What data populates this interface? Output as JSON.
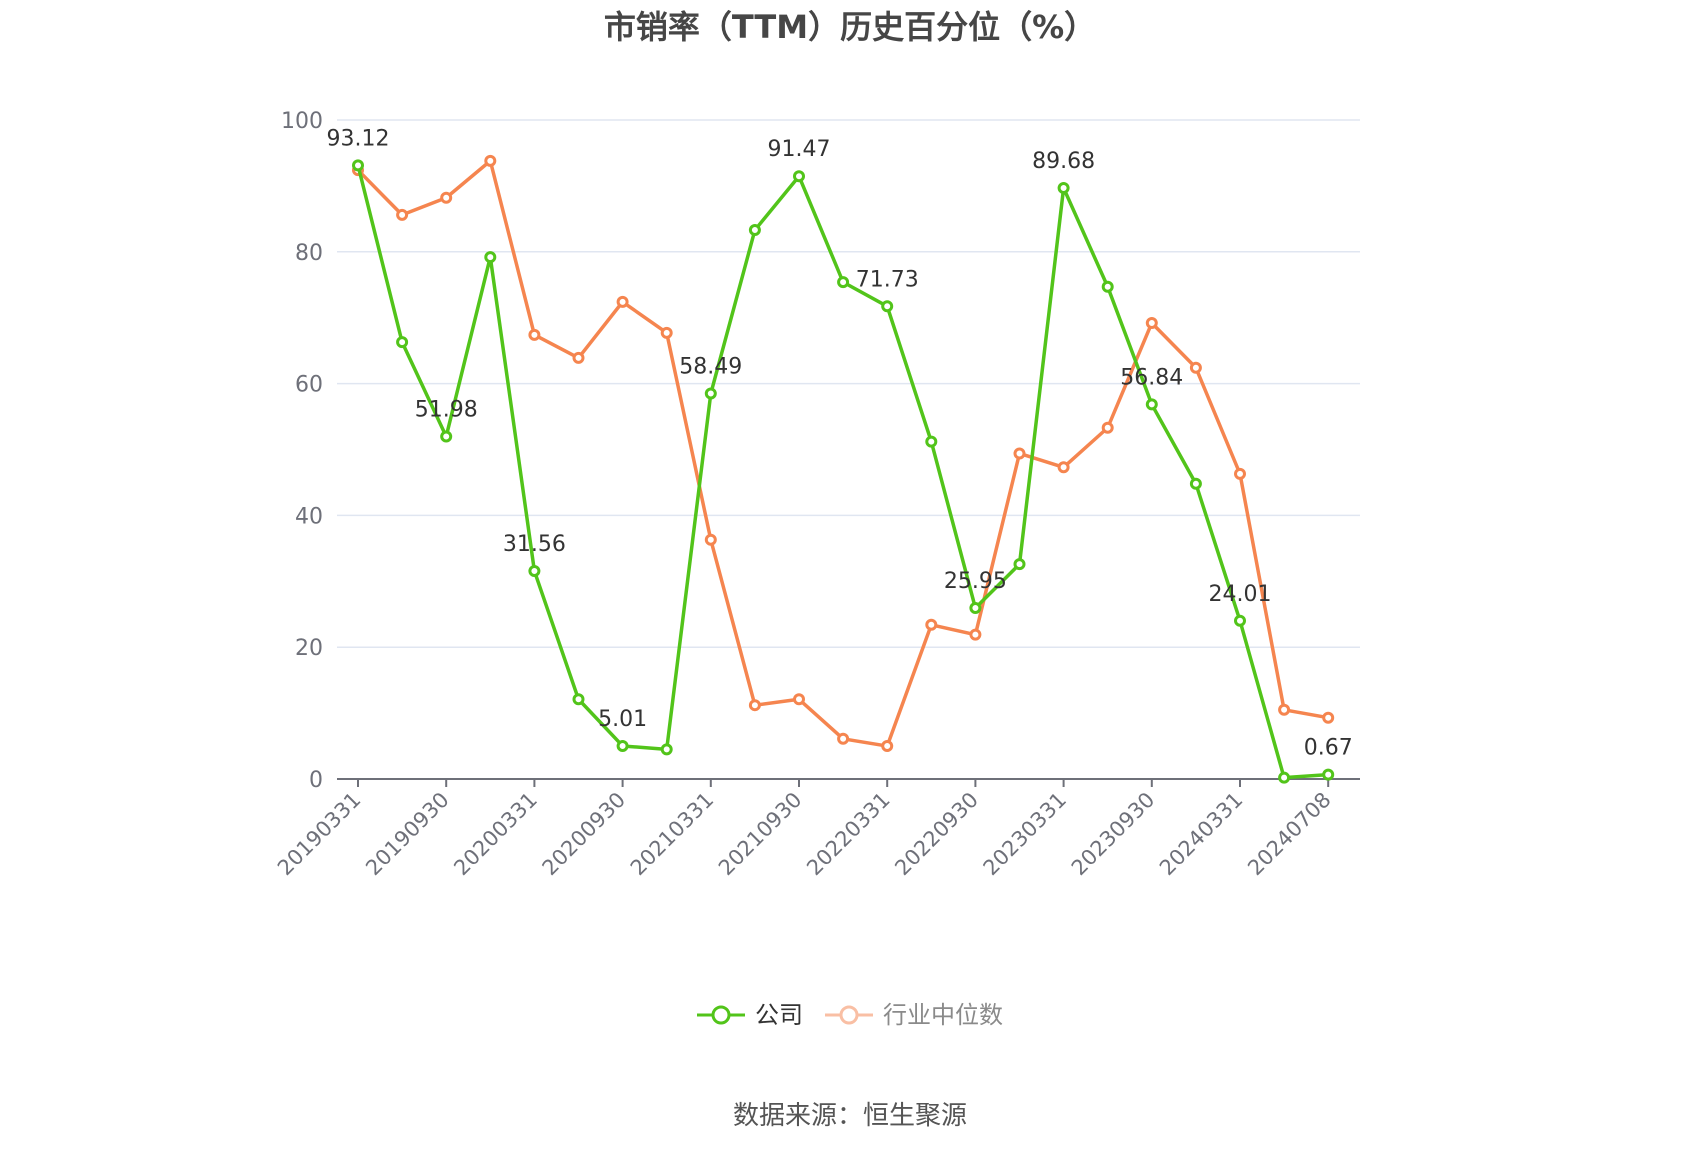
{
  "title": "市销率（TTM）历史百分位（%）",
  "legend": {
    "company": "公司",
    "industry": "行业中位数"
  },
  "source": "数据来源：恒生聚源",
  "colors": {
    "company": "#52c41a",
    "industry": "#f5854f",
    "grid": "#e0e6f1",
    "axis": "#6e7079"
  },
  "chart_data": {
    "type": "line",
    "title": "市销率（TTM）历史百分位（%）",
    "xlabel": "",
    "ylabel": "",
    "ylim": [
      0,
      100
    ],
    "yticks": [
      0,
      20,
      40,
      60,
      80,
      100
    ],
    "grid": true,
    "legend_position": "bottom",
    "categories": [
      "20190331",
      "20190630",
      "20190930",
      "20191231",
      "20200331",
      "20200630",
      "20200930",
      "20201231",
      "20210331",
      "20210630",
      "20210930",
      "20211231",
      "20220331",
      "20220630",
      "20220930",
      "20221231",
      "20230331",
      "20230630",
      "20230930",
      "20231231",
      "20240331",
      "20240630",
      "20240708"
    ],
    "xtick_labels_shown": [
      "20190331",
      "20190930",
      "20200331",
      "20200930",
      "20210331",
      "20210930",
      "20220331",
      "20220930",
      "20230331",
      "20230930",
      "20240331",
      "20240708"
    ],
    "series": [
      {
        "name": "公司",
        "values": [
          93.12,
          66.3,
          51.98,
          79.2,
          31.56,
          12.1,
          5.01,
          4.5,
          58.49,
          83.3,
          91.47,
          75.4,
          71.73,
          51.2,
          25.95,
          32.6,
          89.68,
          74.7,
          56.84,
          44.8,
          24.01,
          0.2,
          0.67
        ],
        "labeled_points": {
          "0": "93.12",
          "2": "51.98",
          "4": "31.56",
          "6": "5.01",
          "8": "58.49",
          "10": "91.47",
          "12": "71.73",
          "14": "25.95",
          "16": "89.68",
          "18": "56.84",
          "20": "24.01",
          "22": "0.67"
        }
      },
      {
        "name": "行业中位数",
        "values": [
          92.4,
          85.6,
          88.2,
          93.8,
          67.4,
          63.9,
          72.4,
          67.7,
          36.3,
          11.2,
          12.1,
          6.1,
          5.0,
          23.4,
          21.9,
          49.4,
          47.3,
          53.3,
          69.2,
          62.4,
          46.3,
          10.5,
          9.3
        ]
      }
    ]
  }
}
